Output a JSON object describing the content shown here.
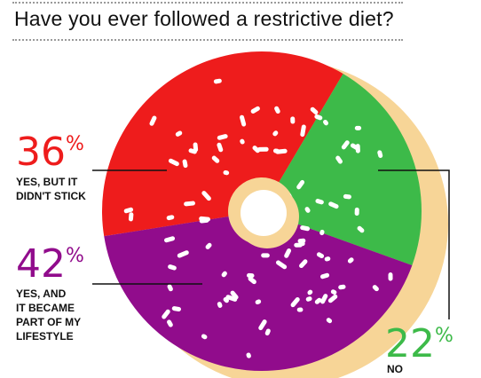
{
  "title": "Have you ever followed a restrictive diet?",
  "chart_data": {
    "type": "pie",
    "title": "Have you ever followed a restrictive diet?",
    "categories": [
      "YES, BUT IT DIDN'T STICK",
      "NO",
      "YES, AND IT BECAME PART OF MY LIFESTYLE"
    ],
    "values": [
      36,
      22,
      42
    ],
    "unit": "%",
    "colors": {
      "yes_didnt_stick": "#ee1c1c",
      "no": "#3dba49",
      "yes_lifestyle": "#910c8c",
      "dough": "#f7d597",
      "sprinkles": "#ffffff"
    },
    "grid": false,
    "legend": "none"
  },
  "labels": {
    "slice1": {
      "number": "36",
      "sign": "%",
      "caption_lines": [
        "YES, BUT IT",
        "DIDN'T STICK"
      ]
    },
    "slice2": {
      "number": "22",
      "sign": "%",
      "caption_lines": [
        "NO"
      ]
    },
    "slice3": {
      "number": "42",
      "sign": "%",
      "caption_lines": [
        "YES, AND",
        "IT BECAME",
        "PART OF MY",
        "LIFESTYLE"
      ]
    }
  }
}
